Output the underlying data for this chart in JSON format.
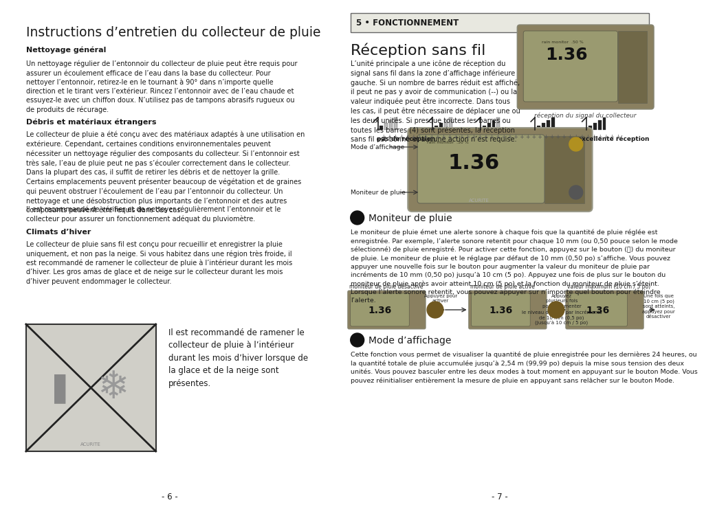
{
  "bg_color": "#ffffff",
  "left_bg": "#ffffff",
  "right_bg": "#ffffff",
  "left_page": {
    "title": "Instructions d’entretien du collecteur de pluie",
    "title_fontsize": 13.5,
    "heading1": "Nettoyage général",
    "body1": "Un nettoyage régulier de l’entonnoir du collecteur de pluie peut être requis pour\nassurer un écoulement efficace de l’eau dans la base du collecteur. Pour\nnettoyer l’entonnoir, retirez-le en le tournant à 90° dans n’importe quelle\ndirection et le tirant vers l’extérieur. Rincez l’entonnoir avec de l’eau chaude et\nessuyez-le avec un chiffon doux. N’utilisez pas de tampons abrasifs rugueux ou\nde produits de récurage.",
    "heading2": "Débris et matériaux étrangers",
    "body2": "Le collecteur de pluie a été conçu avec des matériaux adaptés à une utilisation en\nextérieure. Cependant, certaines conditions environnementales peuvent\nnécessiter un nettoyage régulier des composants du collecteur. Si l’entonnoir est\ntrès sale, l’eau de pluie peut ne pas s’écouler correctement dans le collecteur.\nDans la plupart des cas, il suffit de retirer les débris et de nettoyer la grille.\nCertains emplacements peuvent présenter beaucoup de végétation et de graines\nqui peuvent obstruer l’écoulement de l’eau par l’entonnoir du collecteur. Un\nnettoyage et une désobstruction plus importants de l’entonnoir et des autres\ncomposants peuvent être requis dans ces cas.",
    "body2b": "Il est recommandé de vérifier et de nettoyer régulièrement l’entonnoir et le\ncollecteur pour assurer un fonctionnement adéquat du pluviomètre.",
    "heading3": "Climats d’hiver",
    "body3": "Le collecteur de pluie sans fil est conçu pour recueillir et enregistrer la pluie\nuniquement, et non pas la neige. Si vous habitez dans une région très froide, il\nest recommandé de ramener le collecteur de pluie à l’intérieur durant les mois\nd’hiver. Les gros amas de glace et de neige sur le collecteur durant les mois\nd’hiver peuvent endommager le collecteur.",
    "winter_note": "Il est recommandé de ramener le\ncollecteur de pluie à l’intérieur\ndurant les mois d’hiver lorsque de\nla glace et de la neige sont\nprésentes.",
    "page_num": "- 6 -"
  },
  "right_page": {
    "section_header": "5 • FONCTIONNEMENT",
    "title": "Réception sans fil",
    "intro": "L’unité principale a une icône de réception du\nsignal sans fil dans la zone d’affichage inférieure\ngauche. Si un nombre de barres réduit est affiché,\nil peut ne pas y avoir de communication (--) ou la\nvaleur indiquée peut être incorrecte. Dans tous\nles cas, il peut être nécessaire de déplacer une ou\nles deux unités. Si presque toutes les barres ou\ntoutes les barres (4) sont présentes, la réception\nsans fil est bonne et aucune action n’est requise.",
    "device_caption": "réception du signal du collecteur",
    "signal_label_left": "pas de réception",
    "signal_label_right": "excellente réception",
    "signal_dots": "+ + + + + + + + + + + + + + + + + + + + + + + + + + + + + + + + + + + + + + + +",
    "mode_label_a": "Mode d’affichage",
    "mode_label_b": "Moniteur de pluie",
    "section_a_title": "Moniteur de pluie",
    "section_a_body": "Le moniteur de pluie émet une alerte sonore à chaque fois que la quantité de pluie réglée est\nenregistrée. Par exemple, l’alerte sonore retentit pour chaque 10 mm (ou 0,50 pouce selon le mode\nsélectionné) de pluie enregistré. Pour activer cette fonction, appuyez sur le bouton (⓺) du moniteur\nde pluie. Le moniteur de pluie et le réglage par défaut de 10 mm (0,50 po) s’affiche. Vous pouvez\nappuyer une nouvelle fois sur le bouton pour augmenter la valeur du moniteur de pluie par\nincréments de 10 mm (0,50 po) jusqu’à 10 cm (5 po). Appuyez une fois de plus sur le bouton du\nmoniteur de pluie après avoir atteint 10 cm (5 po) et la fonction du moniteur de pluie s’éteint.\nLorsque l’alerte sonore retentit, vous pouvez appuyer sur n’importe quel bouton pour éteindre\nl’alerte.",
    "rm_label1": "moniteur de pluie désactivé",
    "rm_label2": "Appuyez pour\nactiver",
    "rm_label3": "moniteur de pluie activé",
    "rm_label4": "Appuyez\nplusieurs fois\npour augmenter\nle niveau d’alerte par incréments\nde 10 mm (0,5 po)\n(jusqu’à 10 cm / 5 po)",
    "rm_label5": "valeur maximum (10 cm / 5 po)",
    "rm_label6": "Une fois que\n10 cm (5 po)\nsont atteints,\nappuyez pour\ndésactiver",
    "section_b_title": "Mode d’affichage",
    "section_b_body": "Cette fonction vous permet de visualiser la quantité de pluie enregistrée pour les dernières 24 heures, ou\nla quantité totale de pluie accumulée jusqu’à 2,54 m (99,99 po) depuis la mise sous tension des deux\nunités. Vous pouvez basculer entre les deux modes à tout moment en appuyant sur le bouton Mode. Vous\npouvez réinitialiser entièrement la mesure de pluie en appuyant sans relâcher sur le bouton Mode.",
    "page_num": "- 7 -"
  }
}
